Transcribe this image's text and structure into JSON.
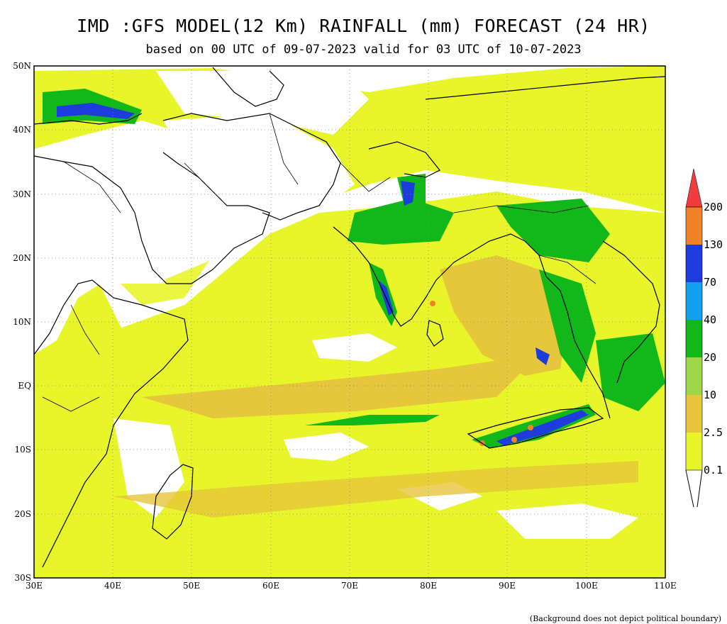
{
  "title": "IMD :GFS MODEL(12 Km) RAINFALL (mm) FORECAST (24 HR)",
  "subtitle": "based on 00 UTC of 09-07-2023 valid for 03 UTC of 10-07-2023",
  "footnote": "(Background does not depict political boundary)",
  "map": {
    "lon_range": [
      30,
      110
    ],
    "lat_range": [
      -30,
      50
    ],
    "lon_ticks": [
      "30E",
      "40E",
      "50E",
      "60E",
      "70E",
      "80E",
      "90E",
      "100E",
      "110E"
    ],
    "lat_ticks": [
      "50N",
      "40N",
      "30N",
      "20N",
      "10N",
      "EQ",
      "10S",
      "20S",
      "30S"
    ],
    "grid": "dotted"
  },
  "colorbar": {
    "unit": "mm",
    "levels": [
      "0.1",
      "2.5",
      "10",
      "20",
      "40",
      "70",
      "130",
      "200"
    ],
    "colors": [
      "#e8f52a",
      "#e6c63a",
      "#9ed64a",
      "#12b81a",
      "#14a0f0",
      "#1e3cdc",
      "#f08228",
      "#f03c3c"
    ]
  },
  "colors": {
    "land": "#ffffff",
    "light_rain": "#e8f52a",
    "moderate_rain": "#e6c63a",
    "heavy_rain": "#12b81a",
    "very_heavy_rain": "#1e3cdc"
  }
}
